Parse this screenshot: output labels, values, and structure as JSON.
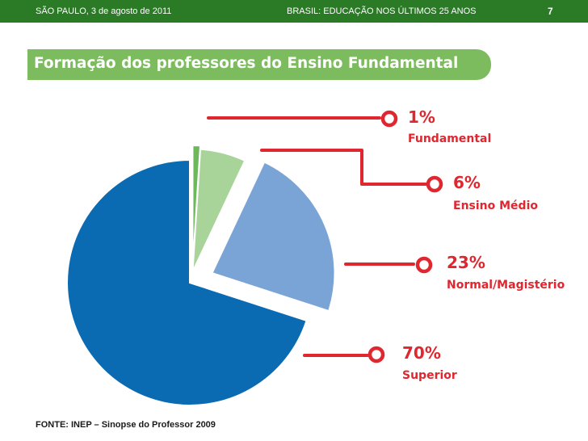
{
  "header": {
    "left": "SÃO PAULO, 3 de agosto de 2011",
    "center": "BRASIL: EDUCAÇÃO NOS ÚLTIMOS 25 ANOS",
    "page": "7"
  },
  "title": "Formação dos professores do Ensino Fundamental",
  "source": "FONTE: INEP – Sinopse do Professor 2009",
  "colors": {
    "header_bg": "#2a7a26",
    "title_bg": "#7cbc5e",
    "accent_red": "#e0262e",
    "slices": [
      "#6cb85a",
      "#a8d49a",
      "#7ba4d6",
      "#0a6ab2"
    ]
  },
  "chart_data": {
    "type": "pie",
    "labels": [
      "Fundamental",
      "Ensino Médio",
      "Normal/Magistério",
      "Superior"
    ],
    "values": [
      1,
      6,
      23,
      70
    ],
    "value_labels": [
      "1%",
      "6%",
      "23%",
      "70%"
    ],
    "legend": "callouts-right"
  }
}
